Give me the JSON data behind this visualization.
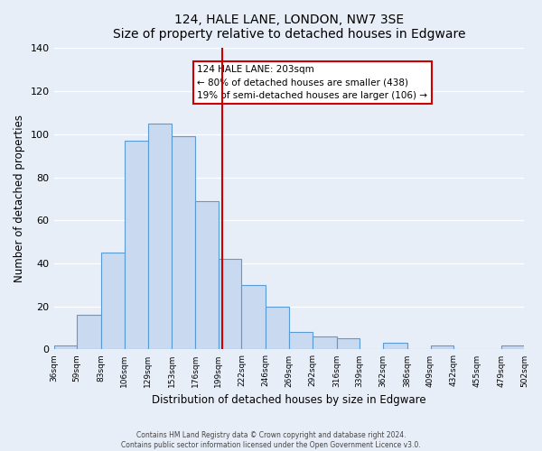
{
  "title": "124, HALE LANE, LONDON, NW7 3SE",
  "subtitle": "Size of property relative to detached houses in Edgware",
  "xlabel": "Distribution of detached houses by size in Edgware",
  "ylabel": "Number of detached properties",
  "bin_edges": [
    36,
    59,
    83,
    106,
    129,
    153,
    176,
    199,
    222,
    246,
    269,
    292,
    316,
    339,
    362,
    386,
    409,
    432,
    455,
    479,
    502
  ],
  "bar_heights": [
    2,
    16,
    45,
    97,
    105,
    99,
    69,
    42,
    30,
    20,
    8,
    6,
    5,
    0,
    3,
    0,
    2,
    0,
    0,
    2
  ],
  "bar_color": "#c9d9f0",
  "bar_edge_color": "#5b9bd5",
  "vline_x": 203,
  "vline_color": "#cc0000",
  "annotation_title": "124 HALE LANE: 203sqm",
  "annotation_line1": "← 80% of detached houses are smaller (438)",
  "annotation_line2": "19% of semi-detached houses are larger (106) →",
  "annotation_box_edge": "#cc0000",
  "ylim": [
    0,
    140
  ],
  "yticks": [
    0,
    20,
    40,
    60,
    80,
    100,
    120,
    140
  ],
  "tick_labels": [
    "36sqm",
    "59sqm",
    "83sqm",
    "106sqm",
    "129sqm",
    "153sqm",
    "176sqm",
    "199sqm",
    "222sqm",
    "246sqm",
    "269sqm",
    "292sqm",
    "316sqm",
    "339sqm",
    "362sqm",
    "386sqm",
    "409sqm",
    "432sqm",
    "455sqm",
    "479sqm",
    "502sqm"
  ],
  "footer_line1": "Contains HM Land Registry data © Crown copyright and database right 2024.",
  "footer_line2": "Contains public sector information licensed under the Open Government Licence v3.0.",
  "background_color": "#e8eef8",
  "plot_bg_color": "#e8eef8"
}
